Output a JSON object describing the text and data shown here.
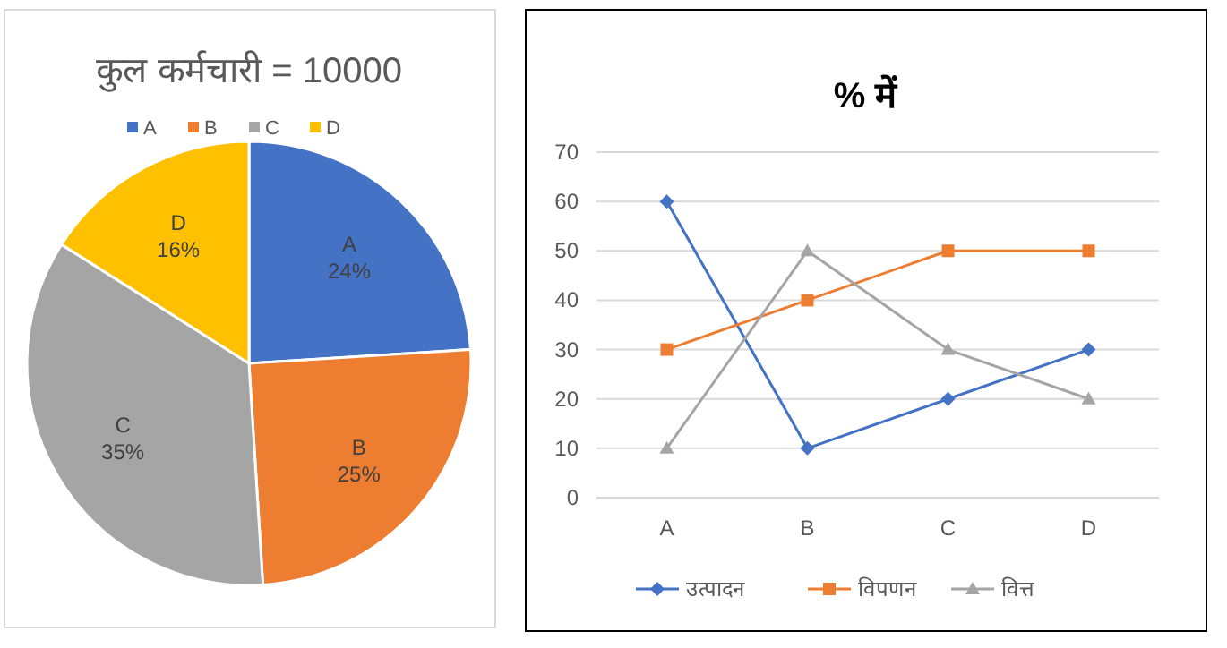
{
  "chart_data": [
    {
      "type": "pie",
      "title": "कुल कर्मचारी = 10000",
      "categories": [
        "A",
        "B",
        "C",
        "D"
      ],
      "values": [
        24,
        25,
        35,
        16
      ],
      "colors": [
        "#4472c4",
        "#ed7d31",
        "#a5a5a5",
        "#ffc000"
      ],
      "value_labels": [
        "24%",
        "25%",
        "35%",
        "16%"
      ],
      "legend": "top"
    },
    {
      "type": "line",
      "title": "% में",
      "categories": [
        "A",
        "B",
        "C",
        "D"
      ],
      "ylim": [
        0,
        70
      ],
      "yticks": [
        0,
        10,
        20,
        30,
        40,
        50,
        60,
        70
      ],
      "grid": "y",
      "legend": "bottom",
      "series": [
        {
          "name": "उत्पादन",
          "color": "#4472c4",
          "marker": "diamond",
          "values": [
            60,
            10,
            20,
            30
          ]
        },
        {
          "name": "विपणन",
          "color": "#ed7d31",
          "marker": "square",
          "values": [
            30,
            40,
            50,
            50
          ]
        },
        {
          "name": "वित्त",
          "color": "#a5a5a5",
          "marker": "triangle",
          "values": [
            10,
            50,
            30,
            20
          ]
        }
      ]
    }
  ]
}
